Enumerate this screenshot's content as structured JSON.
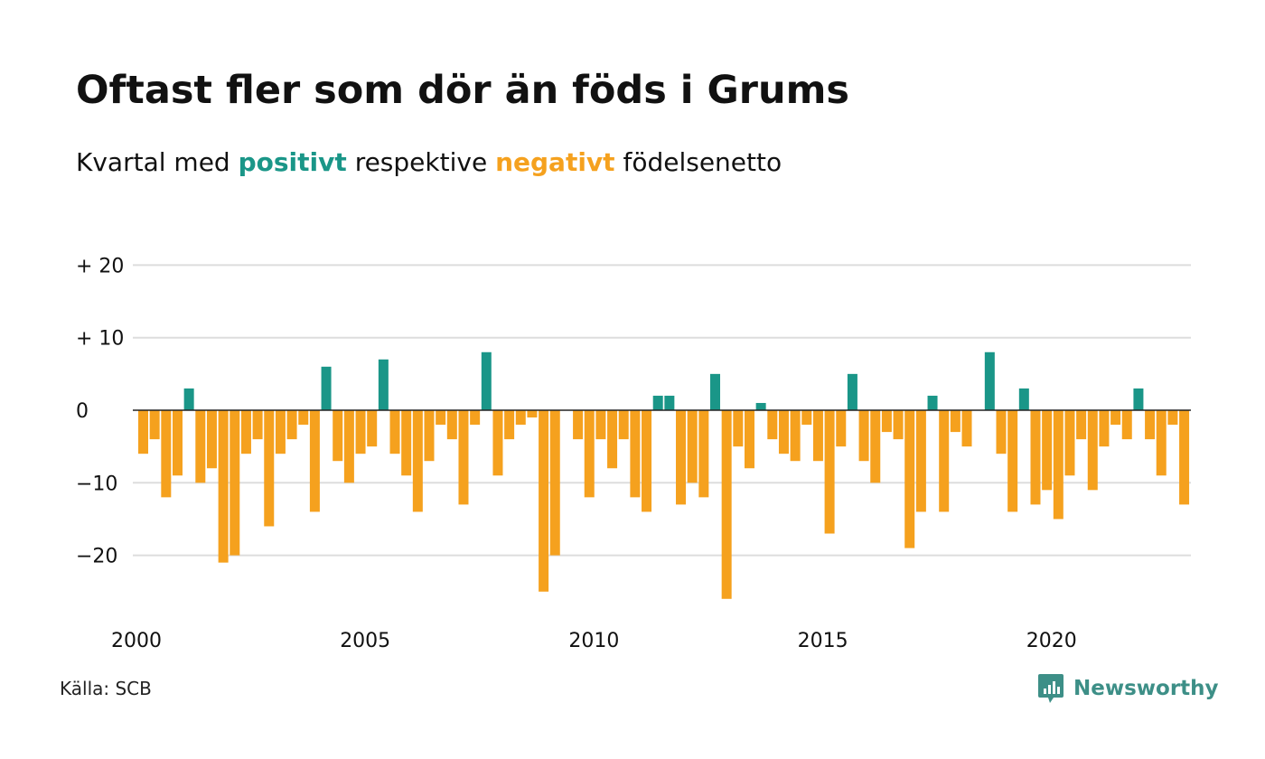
{
  "header": {
    "title": "Oftast fler som dör än föds i Grums",
    "subtitle_prefix": "Kvartal med",
    "subtitle_positive": "positivt",
    "subtitle_middle": "respektive",
    "subtitle_negative": "negativt",
    "subtitle_suffix": "födelsenetto"
  },
  "footer": {
    "source": "Källa: SCB",
    "brand": "Newsworthy"
  },
  "colors": {
    "positive": "#1a9688",
    "negative": "#f5a11e",
    "grid": "#dddddd",
    "zero_line": "#222222",
    "brand": "#3d8f87"
  },
  "chart_data": {
    "type": "bar",
    "title": "Oftast fler som dör än föds i Grums",
    "subtitle": "Kvartal med positivt respektive negativt födelsenetto",
    "xlabel": "",
    "ylabel": "",
    "ylim": [
      -28,
      22
    ],
    "yticks": [
      {
        "value": 20,
        "label": "+ 20"
      },
      {
        "value": 10,
        "label": "+ 10"
      },
      {
        "value": 0,
        "label": "0"
      },
      {
        "value": -10,
        "label": "−10"
      },
      {
        "value": -20,
        "label": "−20"
      }
    ],
    "x_tick_labels": [
      "2000",
      "2005",
      "2010",
      "2015",
      "2020"
    ],
    "x_start_year": 2000,
    "grid": true,
    "legend": "none",
    "values": [
      -6,
      -4,
      -12,
      -9,
      3,
      -10,
      -8,
      -21,
      -20,
      -6,
      -4,
      -16,
      -6,
      -4,
      -2,
      -14,
      6,
      -7,
      -10,
      -6,
      -5,
      7,
      -6,
      -9,
      -14,
      -7,
      -2,
      -4,
      -13,
      -2,
      8,
      -9,
      -4,
      -2,
      -1,
      -25,
      -20,
      0,
      -4,
      -12,
      -4,
      -8,
      -4,
      -12,
      -14,
      2,
      2,
      -13,
      -10,
      -12,
      5,
      -26,
      -5,
      -8,
      1,
      -4,
      -6,
      -7,
      -2,
      -7,
      -17,
      -5,
      5,
      -7,
      -10,
      -3,
      -4,
      -19,
      -14,
      2,
      -14,
      -3,
      -5,
      0,
      8,
      -6,
      -14,
      3,
      -13,
      -11,
      -15,
      -9,
      -4,
      -11,
      -5,
      -2,
      -4,
      3,
      -4,
      -9,
      -2,
      -13
    ]
  }
}
